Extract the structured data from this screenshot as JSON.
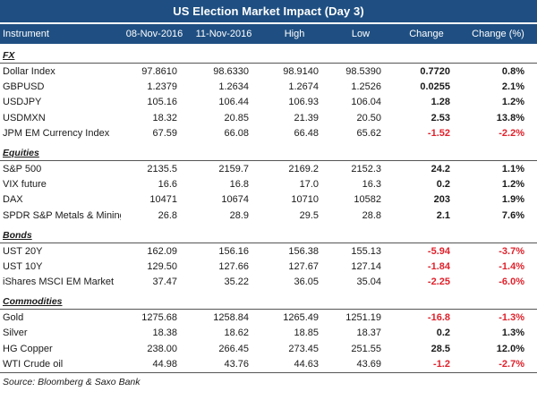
{
  "title": "US Election Market Impact (Day 3)",
  "columns": [
    "Instrument",
    "08-Nov-2016",
    "11-Nov-2016",
    "High",
    "Low",
    "Change",
    "Change (%)"
  ],
  "sections": [
    {
      "label": "FX",
      "rows": [
        {
          "name": "Dollar Index",
          "c1": "97.8610",
          "c2": "98.6330",
          "high": "98.9140",
          "low": "98.5390",
          "change": "0.7720",
          "pct": "0.8%",
          "neg": false
        },
        {
          "name": "GBPUSD",
          "c1": "1.2379",
          "c2": "1.2634",
          "high": "1.2674",
          "low": "1.2526",
          "change": "0.0255",
          "pct": "2.1%",
          "neg": false
        },
        {
          "name": "USDJPY",
          "c1": "105.16",
          "c2": "106.44",
          "high": "106.93",
          "low": "106.04",
          "change": "1.28",
          "pct": "1.2%",
          "neg": false
        },
        {
          "name": "USDMXN",
          "c1": "18.32",
          "c2": "20.85",
          "high": "21.39",
          "low": "20.50",
          "change": "2.53",
          "pct": "13.8%",
          "neg": false
        },
        {
          "name": "JPM EM Currency Index",
          "c1": "67.59",
          "c2": "66.08",
          "high": "66.48",
          "low": "65.62",
          "change": "-1.52",
          "pct": "-2.2%",
          "neg": true
        }
      ]
    },
    {
      "label": "Equities",
      "rows": [
        {
          "name": "S&P 500",
          "c1": "2135.5",
          "c2": "2159.7",
          "high": "2169.2",
          "low": "2152.3",
          "change": "24.2",
          "pct": "1.1%",
          "neg": false
        },
        {
          "name": "VIX future",
          "c1": "16.6",
          "c2": "16.8",
          "high": "17.0",
          "low": "16.3",
          "change": "0.2",
          "pct": "1.2%",
          "neg": false
        },
        {
          "name": "DAX",
          "c1": "10471",
          "c2": "10674",
          "high": "10710",
          "low": "10582",
          "change": "203",
          "pct": "1.9%",
          "neg": false
        },
        {
          "name": "SPDR S&P Metals & Mining",
          "c1": "26.8",
          "c2": "28.9",
          "high": "29.5",
          "low": "28.8",
          "change": "2.1",
          "pct": "7.6%",
          "neg": false
        }
      ]
    },
    {
      "label": "Bonds",
      "rows": [
        {
          "name": "UST 20Y",
          "c1": "162.09",
          "c2": "156.16",
          "high": "156.38",
          "low": "155.13",
          "change": "-5.94",
          "pct": "-3.7%",
          "neg": true
        },
        {
          "name": "UST 10Y",
          "c1": "129.50",
          "c2": "127.66",
          "high": "127.67",
          "low": "127.14",
          "change": "-1.84",
          "pct": "-1.4%",
          "neg": true
        },
        {
          "name": "iShares MSCI EM Market",
          "c1": "37.47",
          "c2": "35.22",
          "high": "36.05",
          "low": "35.04",
          "change": "-2.25",
          "pct": "-6.0%",
          "neg": true
        }
      ]
    },
    {
      "label": "Commodities",
      "rows": [
        {
          "name": "Gold",
          "c1": "1275.68",
          "c2": "1258.84",
          "high": "1265.49",
          "low": "1251.19",
          "change": "-16.8",
          "pct": "-1.3%",
          "neg": true
        },
        {
          "name": "Silver",
          "c1": "18.38",
          "c2": "18.62",
          "high": "18.85",
          "low": "18.37",
          "change": "0.2",
          "pct": "1.3%",
          "neg": false
        },
        {
          "name": "HG Copper",
          "c1": "238.00",
          "c2": "266.45",
          "high": "273.45",
          "low": "251.55",
          "change": "28.5",
          "pct": "12.0%",
          "neg": false
        },
        {
          "name": "WTI Crude oil",
          "c1": "44.98",
          "c2": "43.76",
          "high": "44.63",
          "low": "43.69",
          "change": "-1.2",
          "pct": "-2.7%",
          "neg": true
        }
      ]
    }
  ],
  "source": "Source: Bloomberg & Saxo Bank",
  "colors": {
    "header_bg": "#1f4f82",
    "negative": "#e0212b"
  }
}
